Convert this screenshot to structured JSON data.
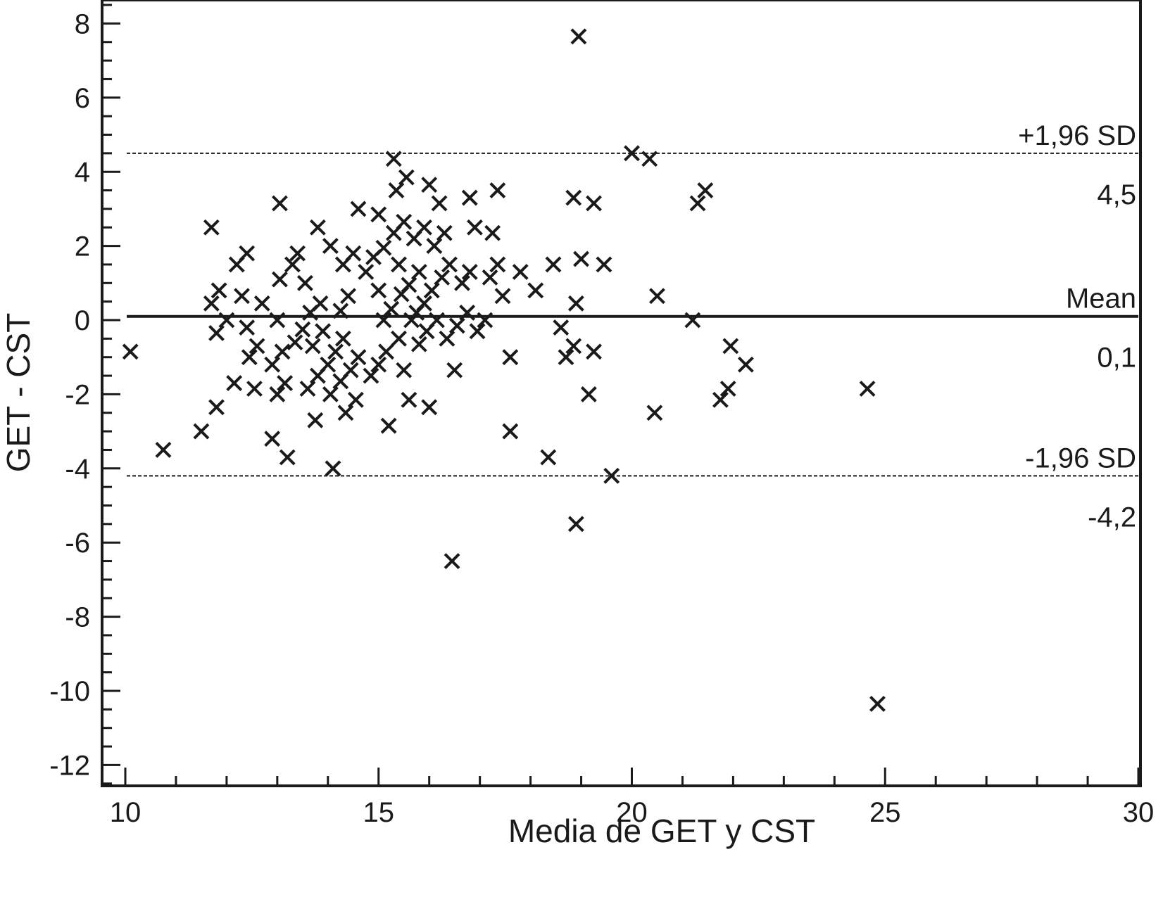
{
  "chart_data": {
    "type": "scatter",
    "title": "",
    "xlabel": "Media de GET y CST",
    "ylabel": "GET - CST",
    "xlim": [
      10,
      30
    ],
    "ylim": [
      -12.5,
      8.5
    ],
    "x_ticks": [
      10,
      15,
      20,
      25,
      30
    ],
    "y_ticks": [
      -12,
      -10,
      -8,
      -6,
      -4,
      -2,
      0,
      2,
      4,
      6,
      8
    ],
    "x_tick_labels": [
      "10",
      "15",
      "20",
      "25",
      "30"
    ],
    "y_tick_labels": [
      "-12",
      "-10",
      "-8",
      "-6",
      "-4",
      "-2",
      "0",
      "2",
      "4",
      "6",
      "8"
    ],
    "marker": "x",
    "grid": false,
    "reference_lines": [
      {
        "label": "+1,96 SD",
        "value_label": "4,5",
        "y": 4.5,
        "style": "dashed"
      },
      {
        "label": "Mean",
        "value_label": "0,1",
        "y": 0.1,
        "style": "solid"
      },
      {
        "label": "-1,96 SD",
        "value_label": "-4,2",
        "y": -4.2,
        "style": "dashed"
      }
    ],
    "points": [
      [
        10.1,
        -0.85
      ],
      [
        10.75,
        -3.5
      ],
      [
        11.5,
        -3.0
      ],
      [
        11.7,
        2.5
      ],
      [
        11.7,
        0.45
      ],
      [
        11.8,
        -0.35
      ],
      [
        11.8,
        -2.35
      ],
      [
        11.85,
        0.8
      ],
      [
        12.0,
        0.0
      ],
      [
        12.15,
        -1.7
      ],
      [
        12.2,
        1.5
      ],
      [
        12.3,
        0.65
      ],
      [
        12.4,
        1.8
      ],
      [
        12.4,
        -0.2
      ],
      [
        12.45,
        -1.0
      ],
      [
        12.55,
        -1.85
      ],
      [
        12.6,
        -0.7
      ],
      [
        12.7,
        0.45
      ],
      [
        12.9,
        -3.2
      ],
      [
        12.9,
        -1.2
      ],
      [
        13.0,
        0.0
      ],
      [
        13.0,
        -2.0
      ],
      [
        13.05,
        3.15
      ],
      [
        13.05,
        1.1
      ],
      [
        13.1,
        -0.85
      ],
      [
        13.15,
        -1.7
      ],
      [
        13.2,
        -3.7
      ],
      [
        13.3,
        1.5
      ],
      [
        13.35,
        -0.6
      ],
      [
        13.4,
        1.8
      ],
      [
        13.5,
        -0.25
      ],
      [
        13.55,
        1.0
      ],
      [
        13.6,
        -1.85
      ],
      [
        13.65,
        0.2
      ],
      [
        13.7,
        -0.7
      ],
      [
        13.75,
        -2.7
      ],
      [
        13.8,
        -1.5
      ],
      [
        13.8,
        2.5
      ],
      [
        13.85,
        0.45
      ],
      [
        13.9,
        -0.3
      ],
      [
        14.0,
        -1.2
      ],
      [
        14.05,
        2.0
      ],
      [
        14.05,
        -2.0
      ],
      [
        14.1,
        -4.0
      ],
      [
        14.15,
        -0.85
      ],
      [
        14.25,
        0.25
      ],
      [
        14.25,
        -1.65
      ],
      [
        14.3,
        1.5
      ],
      [
        14.3,
        -0.5
      ],
      [
        14.35,
        -2.5
      ],
      [
        14.4,
        0.65
      ],
      [
        14.45,
        -1.35
      ],
      [
        14.5,
        1.8
      ],
      [
        14.55,
        -2.15
      ],
      [
        14.6,
        3.0
      ],
      [
        14.6,
        -1.0
      ],
      [
        14.75,
        1.3
      ],
      [
        14.85,
        -1.5
      ],
      [
        14.9,
        1.7
      ],
      [
        15.0,
        2.85
      ],
      [
        15.0,
        0.8
      ],
      [
        15.0,
        -1.2
      ],
      [
        15.1,
        0.0
      ],
      [
        15.1,
        1.95
      ],
      [
        15.15,
        -0.85
      ],
      [
        15.2,
        -2.85
      ],
      [
        15.25,
        0.3
      ],
      [
        15.3,
        4.35
      ],
      [
        15.3,
        2.35
      ],
      [
        15.35,
        3.5
      ],
      [
        15.4,
        1.5
      ],
      [
        15.4,
        -0.5
      ],
      [
        15.45,
        0.7
      ],
      [
        15.5,
        2.65
      ],
      [
        15.5,
        -1.35
      ],
      [
        15.55,
        3.85
      ],
      [
        15.6,
        -2.15
      ],
      [
        15.6,
        0.95
      ],
      [
        15.65,
        0.0
      ],
      [
        15.7,
        2.2
      ],
      [
        15.75,
        0.2
      ],
      [
        15.8,
        -0.65
      ],
      [
        15.8,
        1.3
      ],
      [
        15.9,
        2.5
      ],
      [
        15.9,
        0.45
      ],
      [
        15.95,
        -0.3
      ],
      [
        16.0,
        3.65
      ],
      [
        16.0,
        -2.35
      ],
      [
        16.05,
        0.8
      ],
      [
        16.1,
        2.0
      ],
      [
        16.15,
        0.0
      ],
      [
        16.2,
        3.15
      ],
      [
        16.25,
        1.15
      ],
      [
        16.3,
        2.35
      ],
      [
        16.35,
        -0.5
      ],
      [
        16.4,
        1.5
      ],
      [
        16.45,
        -6.5
      ],
      [
        16.5,
        -1.35
      ],
      [
        16.55,
        -0.15
      ],
      [
        16.65,
        1.0
      ],
      [
        16.75,
        0.2
      ],
      [
        16.8,
        3.3
      ],
      [
        16.8,
        1.3
      ],
      [
        16.9,
        2.5
      ],
      [
        16.95,
        -0.3
      ],
      [
        17.1,
        0.0
      ],
      [
        17.2,
        1.15
      ],
      [
        17.25,
        2.35
      ],
      [
        17.35,
        3.5
      ],
      [
        17.35,
        1.5
      ],
      [
        17.45,
        0.65
      ],
      [
        17.6,
        -1.0
      ],
      [
        17.6,
        -3.0
      ],
      [
        17.8,
        1.3
      ],
      [
        18.1,
        0.8
      ],
      [
        18.35,
        -3.7
      ],
      [
        18.45,
        1.5
      ],
      [
        18.6,
        -0.2
      ],
      [
        18.7,
        -1.0
      ],
      [
        18.85,
        3.3
      ],
      [
        18.85,
        -0.7
      ],
      [
        18.9,
        0.45
      ],
      [
        18.9,
        -5.5
      ],
      [
        18.95,
        7.65
      ],
      [
        19.0,
        1.65
      ],
      [
        19.15,
        -2.0
      ],
      [
        19.25,
        3.15
      ],
      [
        19.25,
        -0.85
      ],
      [
        19.45,
        1.5
      ],
      [
        19.6,
        -4.2
      ],
      [
        20.0,
        4.5
      ],
      [
        20.35,
        4.35
      ],
      [
        20.45,
        -2.5
      ],
      [
        20.5,
        0.65
      ],
      [
        21.2,
        0.0
      ],
      [
        21.3,
        3.15
      ],
      [
        21.45,
        3.5
      ],
      [
        21.75,
        -2.15
      ],
      [
        21.9,
        -1.85
      ],
      [
        21.95,
        -0.7
      ],
      [
        22.25,
        -1.2
      ],
      [
        24.65,
        -1.85
      ],
      [
        24.85,
        -10.35
      ]
    ]
  }
}
